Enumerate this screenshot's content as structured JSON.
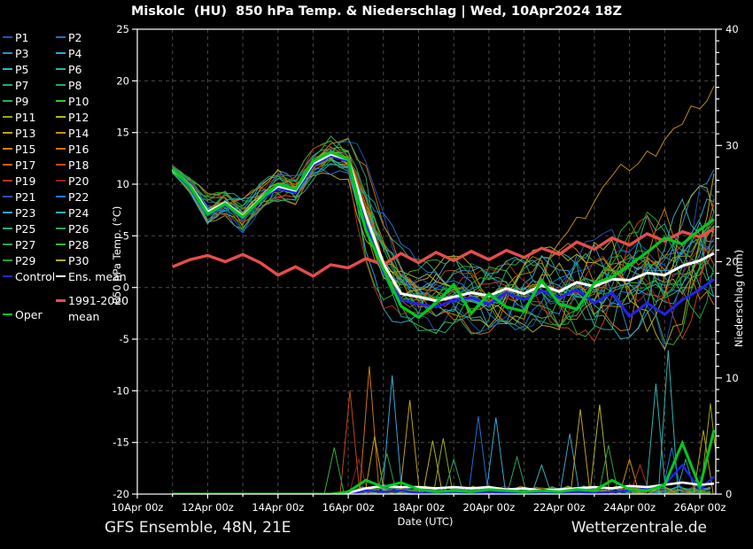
{
  "title": "Miskolc  (HU)  850 hPa Temp. & Niederschlag | Wed, 10Apr2024 18Z",
  "footer": {
    "left": "GFS Ensemble, 48N, 21E",
    "right": "Wetterzentrale.de"
  },
  "colors": {
    "background": "#000000",
    "axis": "#ffffff",
    "grid": "#4a4a4a",
    "ens_mean": "#ffffff",
    "control": "#2222ee",
    "oper": "#00c81e",
    "climate_mean": "#e84c4c"
  },
  "legend": {
    "members": [
      {
        "label": "P1",
        "color": "#2453b4"
      },
      {
        "label": "P2",
        "color": "#1f6fd0"
      },
      {
        "label": "P3",
        "color": "#2f8cd2"
      },
      {
        "label": "P4",
        "color": "#35a5d8"
      },
      {
        "label": "P5",
        "color": "#37b6c8"
      },
      {
        "label": "P6",
        "color": "#2cb39e"
      },
      {
        "label": "P7",
        "color": "#25a982"
      },
      {
        "label": "P8",
        "color": "#2ba75c"
      },
      {
        "label": "P9",
        "color": "#33af46"
      },
      {
        "label": "P10",
        "color": "#41c135"
      },
      {
        "label": "P11",
        "color": "#97a51f"
      },
      {
        "label": "P12",
        "color": "#b5b51d"
      },
      {
        "label": "P13",
        "color": "#bfa313"
      },
      {
        "label": "P14",
        "color": "#c6920d"
      },
      {
        "label": "P15",
        "color": "#cd8309"
      },
      {
        "label": "P16",
        "color": "#cf7307"
      },
      {
        "label": "P17",
        "color": "#cf5e06"
      },
      {
        "label": "P18",
        "color": "#c6490c"
      },
      {
        "label": "P19",
        "color": "#b93114"
      },
      {
        "label": "P20",
        "color": "#9c1f16"
      },
      {
        "label": "P21",
        "color": "#2453b4"
      },
      {
        "label": "P22",
        "color": "#2277d8"
      },
      {
        "label": "P23",
        "color": "#3ba2c8"
      },
      {
        "label": "P24",
        "color": "#2cb4b0"
      },
      {
        "label": "P25",
        "color": "#25ab82"
      },
      {
        "label": "P26",
        "color": "#2ba455"
      },
      {
        "label": "P27",
        "color": "#27a33f"
      },
      {
        "label": "P28",
        "color": "#35b434"
      },
      {
        "label": "P29",
        "color": "#1fa12c"
      },
      {
        "label": "P30",
        "color": "#b3b31e"
      }
    ],
    "control": {
      "label": "Control",
      "color": "#2222ee"
    },
    "ens_mean": {
      "label": "Ens. mean",
      "color": "#ffffff"
    },
    "climate_mean": {
      "label": "1991-2020 mean",
      "label_lines": [
        "1991-2020",
        "mean"
      ],
      "color": "#e84c4c"
    },
    "oper": {
      "label": "Oper",
      "color": "#00c81e"
    }
  },
  "chart_data": {
    "type": "line",
    "title": "Miskolc  (HU)  850 hPa Temp. & Niederschlag | Wed, 10Apr2024 18Z",
    "xlabel": "Date (UTC)",
    "ylabel_left": "850 hPa Temp. (°C)",
    "ylabel_right": "Niederschlag (mm)",
    "grid": true,
    "x_range_days": [
      0,
      16.45
    ],
    "x_tick_days": [
      0,
      2,
      4,
      6,
      8,
      10,
      12,
      14,
      16
    ],
    "x_tick_labels": [
      "10Apr 00z",
      "12Apr 00z",
      "14Apr 00z",
      "16Apr 00z",
      "18Apr 00z",
      "20Apr 00z",
      "22Apr 00z",
      "24Apr 00z",
      "26Apr 00z"
    ],
    "y_left_range": [
      -20,
      25
    ],
    "y_left_ticks": [
      25,
      20,
      15,
      10,
      5,
      0,
      -5,
      -10,
      -15,
      -20
    ],
    "y_right_range": [
      0,
      40
    ],
    "y_right_ticks": [
      40,
      30,
      20,
      10,
      0
    ],
    "t_days": [
      1,
      1.5,
      2,
      2.5,
      3,
      3.5,
      4,
      4.5,
      5,
      5.5,
      6,
      6.5,
      7,
      7.5,
      8,
      8.5,
      9,
      9.5,
      10,
      10.5,
      11,
      11.5,
      12,
      12.5,
      13,
      13.5,
      14,
      14.5,
      15,
      15.5,
      16,
      16.4
    ],
    "temperature": {
      "ens_mean": [
        11.4,
        9.9,
        7.3,
        8.2,
        6.9,
        8.6,
        9.8,
        9.4,
        12.0,
        12.9,
        12.4,
        7.0,
        2.3,
        -0.6,
        -0.9,
        -1.3,
        -0.9,
        -0.5,
        -0.8,
        -0.1,
        -0.6,
        0.2,
        -0.4,
        0.5,
        0.1,
        0.8,
        0.7,
        1.4,
        1.2,
        2.1,
        2.6,
        3.3
      ],
      "control": [
        11.4,
        9.7,
        7.0,
        8.0,
        6.7,
        8.4,
        9.6,
        9.2,
        11.8,
        12.8,
        12.2,
        6.0,
        1.5,
        -1.2,
        -1.6,
        -1.9,
        -1.2,
        -1.0,
        -1.6,
        -0.5,
        -1.2,
        -0.3,
        -1.0,
        -0.2,
        -1.5,
        -0.5,
        -2.8,
        -1.5,
        -2.6,
        -1.2,
        -0.2,
        0.8
      ],
      "oper": [
        11.5,
        9.8,
        7.1,
        8.1,
        6.8,
        8.5,
        10.0,
        9.5,
        12.2,
        13.1,
        12.4,
        5.5,
        1.8,
        -1.8,
        -2.9,
        -1.5,
        0.3,
        -2.5,
        -0.6,
        -1.9,
        -2.3,
        0.7,
        -1.6,
        -2.1,
        0.4,
        1.0,
        2.2,
        3.4,
        4.8,
        4.2,
        5.6,
        6.6
      ],
      "climate_mean_1991_2020": [
        2.0,
        2.7,
        3.1,
        2.5,
        3.2,
        2.4,
        1.2,
        2.0,
        1.1,
        2.2,
        1.9,
        2.8,
        2.2,
        3.3,
        2.4,
        3.4,
        2.6,
        3.5,
        2.7,
        3.6,
        2.9,
        3.8,
        3.2,
        4.4,
        3.7,
        4.8,
        4.1,
        5.2,
        4.5,
        5.4,
        4.9,
        5.7
      ],
      "ensemble_min": [
        11.0,
        9.0,
        5.5,
        6.6,
        4.8,
        7.0,
        8.0,
        7.8,
        10.2,
        10.8,
        10.0,
        2.0,
        -2.5,
        -3.8,
        -4.5,
        -4.8,
        -5.0,
        -5.2,
        -5.5,
        -5.0,
        -5.2,
        -4.6,
        -6.0,
        -5.4,
        -6.2,
        -5.0,
        -5.2,
        -4.6,
        -6.5,
        -5.5,
        -3.6,
        -2.5
      ],
      "ensemble_max": [
        11.9,
        10.8,
        9.5,
        9.8,
        9.3,
        10.4,
        11.8,
        11.2,
        13.6,
        14.8,
        14.6,
        12.5,
        8.0,
        4.5,
        3.0,
        3.2,
        3.6,
        3.4,
        3.0,
        3.8,
        4.2,
        4.6,
        4.4,
        5.0,
        5.6,
        6.2,
        7.0,
        7.6,
        8.0,
        9.0,
        10.8,
        12.0
      ],
      "outlier_member": {
        "name": "P14",
        "t": [
          12,
          12.5,
          13,
          13.5,
          14,
          14.5,
          15,
          15.5,
          16,
          16.4
        ],
        "values": [
          4.4,
          6.8,
          8.3,
          10.8,
          11.3,
          13.2,
          14.3,
          15.8,
          17.3,
          19.5
        ]
      }
    },
    "precipitation": {
      "ens_mean": [
        0,
        0,
        0,
        0,
        0,
        0,
        0,
        0,
        0,
        0,
        0.1,
        0.5,
        0.7,
        0.6,
        0.6,
        0.5,
        0.6,
        0.5,
        0.6,
        0.4,
        0.5,
        0.3,
        0.4,
        0.5,
        0.6,
        0.5,
        0.7,
        0.6,
        0.8,
        1.0,
        0.8,
        0.9
      ],
      "control": [
        0,
        0,
        0,
        0,
        0,
        0,
        0,
        0,
        0,
        0,
        0,
        0.3,
        0.2,
        0.3,
        0.1,
        0.1,
        0.2,
        0.1,
        0.2,
        0.1,
        0.1,
        0.2,
        0.1,
        0.2,
        0.1,
        0.2,
        0.3,
        0.5,
        0.8,
        2.5,
        0.4,
        1.5
      ],
      "oper": [
        0,
        0,
        0,
        0,
        0,
        0,
        0,
        0,
        0,
        0,
        0.2,
        1.2,
        0.6,
        1.0,
        0.4,
        0.2,
        0.3,
        0.2,
        0.4,
        0.3,
        0.2,
        0.3,
        0.2,
        0.4,
        0.3,
        1.2,
        0.4,
        0.3,
        0.8,
        4.4,
        0.6,
        5.5
      ],
      "member_spikes": [
        {
          "t": 5.6,
          "mm": 4.0,
          "member": "P9"
        },
        {
          "t": 6.05,
          "mm": 8.9,
          "member": "P18"
        },
        {
          "t": 6.3,
          "mm": 3.0,
          "member": "P20"
        },
        {
          "t": 6.6,
          "mm": 11.0,
          "member": "P16"
        },
        {
          "t": 6.75,
          "mm": 5.0,
          "member": "P13"
        },
        {
          "t": 7.1,
          "mm": 3.5,
          "member": "P27"
        },
        {
          "t": 7.25,
          "mm": 10.2,
          "member": "P4"
        },
        {
          "t": 7.75,
          "mm": 8.1,
          "member": "P13"
        },
        {
          "t": 8.4,
          "mm": 4.6,
          "member": "P12"
        },
        {
          "t": 8.7,
          "mm": 4.8,
          "member": "P11"
        },
        {
          "t": 9.0,
          "mm": 3.0,
          "member": "P26"
        },
        {
          "t": 9.7,
          "mm": 6.7,
          "member": "P2"
        },
        {
          "t": 10.2,
          "mm": 6.6,
          "member": "P4"
        },
        {
          "t": 10.8,
          "mm": 3.2,
          "member": "P8"
        },
        {
          "t": 11.5,
          "mm": 2.5,
          "member": "P24"
        },
        {
          "t": 12.3,
          "mm": 5.2,
          "member": "P23"
        },
        {
          "t": 12.6,
          "mm": 7.3,
          "member": "P13"
        },
        {
          "t": 13.15,
          "mm": 7.7,
          "member": "P12"
        },
        {
          "t": 13.4,
          "mm": 4.2,
          "member": "P27"
        },
        {
          "t": 14.0,
          "mm": 3.0,
          "member": "P14"
        },
        {
          "t": 14.3,
          "mm": 2.5,
          "member": "P19"
        },
        {
          "t": 14.75,
          "mm": 9.5,
          "member": "P24"
        },
        {
          "t": 15.1,
          "mm": 12.4,
          "member": "P24"
        },
        {
          "t": 15.2,
          "mm": 4.0,
          "member": "P22"
        },
        {
          "t": 15.6,
          "mm": 3.0,
          "member": "P25"
        },
        {
          "t": 16.1,
          "mm": 5.5,
          "member": "P13"
        },
        {
          "t": 16.3,
          "mm": 7.8,
          "member": "P11"
        }
      ]
    }
  }
}
